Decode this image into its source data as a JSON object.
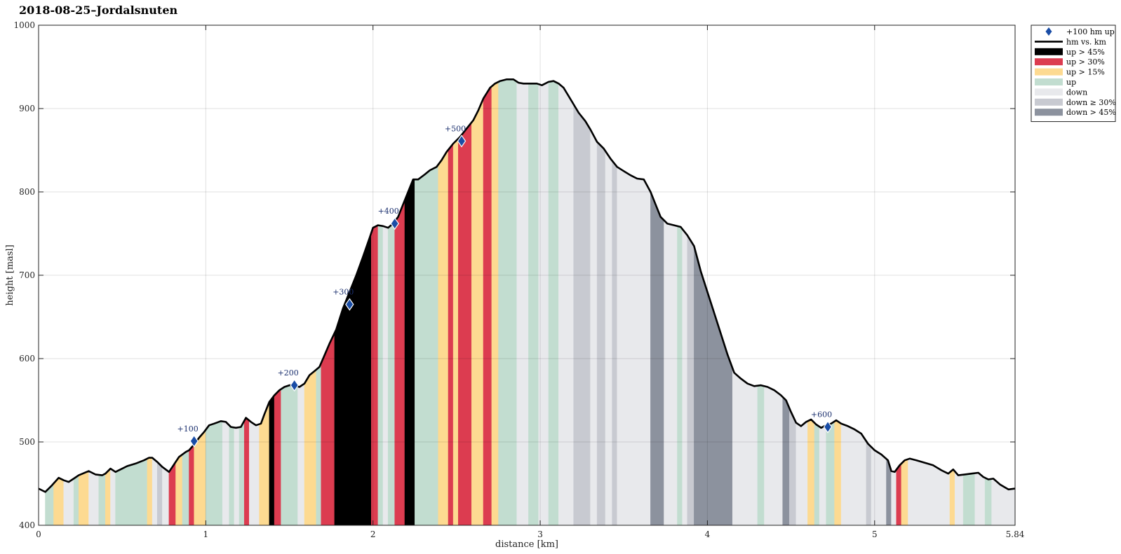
{
  "chart_data": {
    "type": "area",
    "title": "2018-08-25–Jordalsnuten",
    "xlabel": "distance [km]",
    "ylabel": "height [masl]",
    "xlim": [
      0,
      5.84
    ],
    "ylim": [
      400,
      1000
    ],
    "x_ticks": [
      "0",
      "1",
      "2",
      "3",
      "4",
      "5",
      "5.84"
    ],
    "x_tick_values": [
      0,
      1,
      2,
      3,
      4,
      5,
      5.84
    ],
    "y_ticks": [
      "400",
      "500",
      "600",
      "700",
      "800",
      "900",
      "1000"
    ],
    "y_tick_values": [
      400,
      500,
      600,
      700,
      800,
      900,
      1000
    ],
    "grid": true,
    "legend_position": "outside-top-right",
    "profile": {
      "name": "hm vs. km",
      "x": [
        0,
        0.04,
        0.08,
        0.12,
        0.15,
        0.18,
        0.21,
        0.24,
        0.3,
        0.34,
        0.38,
        0.4,
        0.43,
        0.46,
        0.5,
        0.53,
        0.58,
        0.63,
        0.66,
        0.68,
        0.71,
        0.74,
        0.78,
        0.8,
        0.84,
        0.88,
        0.9,
        0.93,
        0.96,
        0.99,
        1.02,
        1.05,
        1.09,
        1.12,
        1.15,
        1.18,
        1.21,
        1.24,
        1.27,
        1.3,
        1.33,
        1.35,
        1.38,
        1.41,
        1.44,
        1.47,
        1.5,
        1.53,
        1.56,
        1.59,
        1.62,
        1.65,
        1.68,
        1.71,
        1.74,
        1.78,
        1.82,
        1.86,
        1.9,
        1.94,
        1.98,
        2.0,
        2.03,
        2.06,
        2.09,
        2.12,
        2.15,
        2.18,
        2.21,
        2.24,
        2.27,
        2.31,
        2.34,
        2.38,
        2.41,
        2.44,
        2.48,
        2.52,
        2.56,
        2.6,
        2.63,
        2.66,
        2.7,
        2.73,
        2.76,
        2.8,
        2.84,
        2.87,
        2.9,
        2.94,
        2.98,
        3.01,
        3.05,
        3.08,
        3.11,
        3.14,
        3.17,
        3.2,
        3.23,
        3.27,
        3.3,
        3.34,
        3.38,
        3.42,
        3.46,
        3.5,
        3.54,
        3.58,
        3.62,
        3.66,
        3.69,
        3.72,
        3.76,
        3.8,
        3.84,
        3.88,
        3.92,
        3.96,
        4.0,
        4.04,
        4.08,
        4.12,
        4.16,
        4.2,
        4.24,
        4.28,
        4.32,
        4.36,
        4.4,
        4.44,
        4.47,
        4.5,
        4.53,
        4.56,
        4.59,
        4.62,
        4.65,
        4.68,
        4.71,
        4.74,
        4.77,
        4.8,
        4.84,
        4.88,
        4.92,
        4.96,
        5.0,
        5.04,
        5.08,
        5.1,
        5.12,
        5.15,
        5.18,
        5.21,
        5.25,
        5.3,
        5.35,
        5.4,
        5.44,
        5.47,
        5.5,
        5.54,
        5.58,
        5.62,
        5.65,
        5.68,
        5.71,
        5.75,
        5.8,
        5.84
      ],
      "y": [
        444,
        440,
        448,
        457,
        454,
        452,
        456,
        460,
        465,
        461,
        460,
        462,
        468,
        464,
        468,
        471,
        474,
        478,
        481,
        481,
        476,
        470,
        464,
        470,
        482,
        488,
        490,
        497,
        505,
        512,
        520,
        522,
        525,
        524,
        518,
        517,
        518,
        529,
        524,
        520,
        522,
        533,
        548,
        556,
        562,
        566,
        568,
        568,
        566,
        570,
        580,
        585,
        590,
        604,
        618,
        635,
        660,
        680,
        700,
        722,
        745,
        757,
        760,
        759,
        757,
        762,
        770,
        785,
        800,
        815,
        815,
        821,
        826,
        830,
        838,
        848,
        858,
        866,
        876,
        886,
        898,
        912,
        925,
        930,
        933,
        935,
        935,
        931,
        930,
        930,
        930,
        928,
        932,
        933,
        930,
        925,
        915,
        905,
        895,
        885,
        875,
        860,
        852,
        840,
        830,
        825,
        820,
        816,
        815,
        800,
        785,
        770,
        762,
        760,
        758,
        748,
        735,
        705,
        680,
        655,
        630,
        605,
        583,
        576,
        570,
        567,
        568,
        566,
        562,
        556,
        550,
        536,
        523,
        519,
        524,
        527,
        521,
        517,
        520,
        522,
        526,
        522,
        519,
        515,
        510,
        498,
        490,
        485,
        478,
        465,
        464,
        472,
        478,
        480,
        478,
        475,
        472,
        466,
        462,
        467,
        460,
        461,
        462,
        463,
        458,
        455,
        456,
        449,
        443,
        444
      ]
    },
    "bands": [
      {
        "x0": 0.04,
        "x1": 0.09,
        "cat": "up"
      },
      {
        "x0": 0.09,
        "x1": 0.15,
        "cat": "up > 15%"
      },
      {
        "x0": 0.15,
        "x1": 0.21,
        "cat": "down"
      },
      {
        "x0": 0.21,
        "x1": 0.24,
        "cat": "up"
      },
      {
        "x0": 0.24,
        "x1": 0.3,
        "cat": "up > 15%"
      },
      {
        "x0": 0.3,
        "x1": 0.36,
        "cat": "down"
      },
      {
        "x0": 0.36,
        "x1": 0.4,
        "cat": "up"
      },
      {
        "x0": 0.4,
        "x1": 0.43,
        "cat": "up > 15%"
      },
      {
        "x0": 0.43,
        "x1": 0.46,
        "cat": "down"
      },
      {
        "x0": 0.46,
        "x1": 0.65,
        "cat": "up"
      },
      {
        "x0": 0.65,
        "x1": 0.68,
        "cat": "up > 15%"
      },
      {
        "x0": 0.68,
        "x1": 0.71,
        "cat": "down"
      },
      {
        "x0": 0.71,
        "x1": 0.74,
        "cat": "down ≥ 30%"
      },
      {
        "x0": 0.74,
        "x1": 0.78,
        "cat": "down"
      },
      {
        "x0": 0.78,
        "x1": 0.82,
        "cat": "up > 30%"
      },
      {
        "x0": 0.82,
        "x1": 0.86,
        "cat": "up > 15%"
      },
      {
        "x0": 0.86,
        "x1": 0.9,
        "cat": "up"
      },
      {
        "x0": 0.9,
        "x1": 0.93,
        "cat": "up > 30%"
      },
      {
        "x0": 0.93,
        "x1": 1.0,
        "cat": "up > 15%"
      },
      {
        "x0": 1.0,
        "x1": 1.1,
        "cat": "up"
      },
      {
        "x0": 1.1,
        "x1": 1.14,
        "cat": "down"
      },
      {
        "x0": 1.14,
        "x1": 1.17,
        "cat": "up"
      },
      {
        "x0": 1.17,
        "x1": 1.2,
        "cat": "down"
      },
      {
        "x0": 1.2,
        "x1": 1.23,
        "cat": "up"
      },
      {
        "x0": 1.23,
        "x1": 1.26,
        "cat": "up > 30%"
      },
      {
        "x0": 1.26,
        "x1": 1.32,
        "cat": "down"
      },
      {
        "x0": 1.32,
        "x1": 1.38,
        "cat": "up > 15%"
      },
      {
        "x0": 1.38,
        "x1": 1.41,
        "cat": "up > 45%"
      },
      {
        "x0": 1.41,
        "x1": 1.45,
        "cat": "up > 30%"
      },
      {
        "x0": 1.45,
        "x1": 1.55,
        "cat": "up"
      },
      {
        "x0": 1.55,
        "x1": 1.59,
        "cat": "down"
      },
      {
        "x0": 1.59,
        "x1": 1.66,
        "cat": "up > 15%"
      },
      {
        "x0": 1.66,
        "x1": 1.69,
        "cat": "up"
      },
      {
        "x0": 1.69,
        "x1": 1.77,
        "cat": "up > 30%"
      },
      {
        "x0": 1.77,
        "x1": 1.99,
        "cat": "up > 45%"
      },
      {
        "x0": 1.99,
        "x1": 2.03,
        "cat": "up > 30%"
      },
      {
        "x0": 2.03,
        "x1": 2.06,
        "cat": "up"
      },
      {
        "x0": 2.06,
        "x1": 2.09,
        "cat": "down"
      },
      {
        "x0": 2.09,
        "x1": 2.13,
        "cat": "up"
      },
      {
        "x0": 2.13,
        "x1": 2.19,
        "cat": "up > 30%"
      },
      {
        "x0": 2.19,
        "x1": 2.25,
        "cat": "up > 45%"
      },
      {
        "x0": 2.25,
        "x1": 2.39,
        "cat": "up"
      },
      {
        "x0": 2.39,
        "x1": 2.45,
        "cat": "up > 15%"
      },
      {
        "x0": 2.45,
        "x1": 2.48,
        "cat": "up > 30%"
      },
      {
        "x0": 2.48,
        "x1": 2.51,
        "cat": "up > 15%"
      },
      {
        "x0": 2.51,
        "x1": 2.59,
        "cat": "up > 30%"
      },
      {
        "x0": 2.59,
        "x1": 2.66,
        "cat": "up > 15%"
      },
      {
        "x0": 2.66,
        "x1": 2.71,
        "cat": "up > 30%"
      },
      {
        "x0": 2.71,
        "x1": 2.75,
        "cat": "up > 15%"
      },
      {
        "x0": 2.75,
        "x1": 2.86,
        "cat": "up"
      },
      {
        "x0": 2.86,
        "x1": 2.93,
        "cat": "down"
      },
      {
        "x0": 2.93,
        "x1": 2.99,
        "cat": "up"
      },
      {
        "x0": 2.99,
        "x1": 3.05,
        "cat": "down"
      },
      {
        "x0": 3.05,
        "x1": 3.11,
        "cat": "up"
      },
      {
        "x0": 3.11,
        "x1": 3.2,
        "cat": "down"
      },
      {
        "x0": 3.2,
        "x1": 3.3,
        "cat": "down ≥ 30%"
      },
      {
        "x0": 3.3,
        "x1": 3.34,
        "cat": "down"
      },
      {
        "x0": 3.34,
        "x1": 3.39,
        "cat": "down ≥ 30%"
      },
      {
        "x0": 3.39,
        "x1": 3.43,
        "cat": "down"
      },
      {
        "x0": 3.43,
        "x1": 3.46,
        "cat": "down ≥ 30%"
      },
      {
        "x0": 3.46,
        "x1": 3.66,
        "cat": "down"
      },
      {
        "x0": 3.66,
        "x1": 3.74,
        "cat": "down > 45%"
      },
      {
        "x0": 3.74,
        "x1": 3.82,
        "cat": "down"
      },
      {
        "x0": 3.82,
        "x1": 3.85,
        "cat": "up"
      },
      {
        "x0": 3.85,
        "x1": 3.88,
        "cat": "down"
      },
      {
        "x0": 3.88,
        "x1": 3.92,
        "cat": "down ≥ 30%"
      },
      {
        "x0": 3.92,
        "x1": 4.15,
        "cat": "down > 45%"
      },
      {
        "x0": 4.15,
        "x1": 4.3,
        "cat": "down"
      },
      {
        "x0": 4.3,
        "x1": 4.34,
        "cat": "up"
      },
      {
        "x0": 4.34,
        "x1": 4.45,
        "cat": "down"
      },
      {
        "x0": 4.45,
        "x1": 4.49,
        "cat": "down > 45%"
      },
      {
        "x0": 4.49,
        "x1": 4.53,
        "cat": "down ≥ 30%"
      },
      {
        "x0": 4.53,
        "x1": 4.6,
        "cat": "down"
      },
      {
        "x0": 4.6,
        "x1": 4.64,
        "cat": "up > 15%"
      },
      {
        "x0": 4.64,
        "x1": 4.67,
        "cat": "up"
      },
      {
        "x0": 4.67,
        "x1": 4.71,
        "cat": "down"
      },
      {
        "x0": 4.71,
        "x1": 4.76,
        "cat": "up"
      },
      {
        "x0": 4.76,
        "x1": 4.8,
        "cat": "up > 15%"
      },
      {
        "x0": 4.8,
        "x1": 4.95,
        "cat": "down"
      },
      {
        "x0": 4.95,
        "x1": 4.98,
        "cat": "down ≥ 30%"
      },
      {
        "x0": 4.98,
        "x1": 5.07,
        "cat": "down"
      },
      {
        "x0": 5.07,
        "x1": 5.1,
        "cat": "down > 45%"
      },
      {
        "x0": 5.1,
        "x1": 5.13,
        "cat": "down"
      },
      {
        "x0": 5.13,
        "x1": 5.16,
        "cat": "up > 30%"
      },
      {
        "x0": 5.16,
        "x1": 5.2,
        "cat": "up > 15%"
      },
      {
        "x0": 5.2,
        "x1": 5.45,
        "cat": "down"
      },
      {
        "x0": 5.45,
        "x1": 5.48,
        "cat": "up > 15%"
      },
      {
        "x0": 5.48,
        "x1": 5.53,
        "cat": "down"
      },
      {
        "x0": 5.53,
        "x1": 5.6,
        "cat": "up"
      },
      {
        "x0": 5.6,
        "x1": 5.66,
        "cat": "down"
      },
      {
        "x0": 5.66,
        "x1": 5.7,
        "cat": "up"
      },
      {
        "x0": 5.7,
        "x1": 5.84,
        "cat": "down"
      }
    ],
    "milestones": [
      {
        "label": "+100",
        "x": 0.93,
        "y": 501
      },
      {
        "label": "+200",
        "x": 1.53,
        "y": 568
      },
      {
        "label": "+300",
        "x": 1.86,
        "y": 665
      },
      {
        "label": "+400",
        "x": 2.13,
        "y": 762
      },
      {
        "label": "+500",
        "x": 2.53,
        "y": 861
      },
      {
        "label": "+600",
        "x": 4.72,
        "y": 518
      }
    ],
    "legend": [
      {
        "label": "+100 hm up",
        "kind": "diamond",
        "color": "#1a4da6"
      },
      {
        "label": "hm vs. km",
        "kind": "line",
        "color": "#000000"
      },
      {
        "label": "up > 45%",
        "kind": "patch",
        "color": "#000000"
      },
      {
        "label": "up > 30%",
        "kind": "patch",
        "color": "#dc3c50"
      },
      {
        "label": "up > 15%",
        "kind": "patch",
        "color": "#fdda91"
      },
      {
        "label": "up",
        "kind": "patch",
        "color": "#c2ddd0"
      },
      {
        "label": "down",
        "kind": "patch",
        "color": "#e8e9ec"
      },
      {
        "label": "down ≥ 30%",
        "kind": "patch",
        "color": "#c8cad1"
      },
      {
        "label": "down > 45%",
        "kind": "patch",
        "color": "#8c929e"
      }
    ],
    "category_colors": {
      "up > 45%": "#000000",
      "up > 30%": "#dc3c50",
      "up > 15%": "#fdda91",
      "up": "#c2ddd0",
      "down": "#e8e9ec",
      "down ≥ 30%": "#c8cad1",
      "down > 45%": "#8c929e"
    }
  }
}
